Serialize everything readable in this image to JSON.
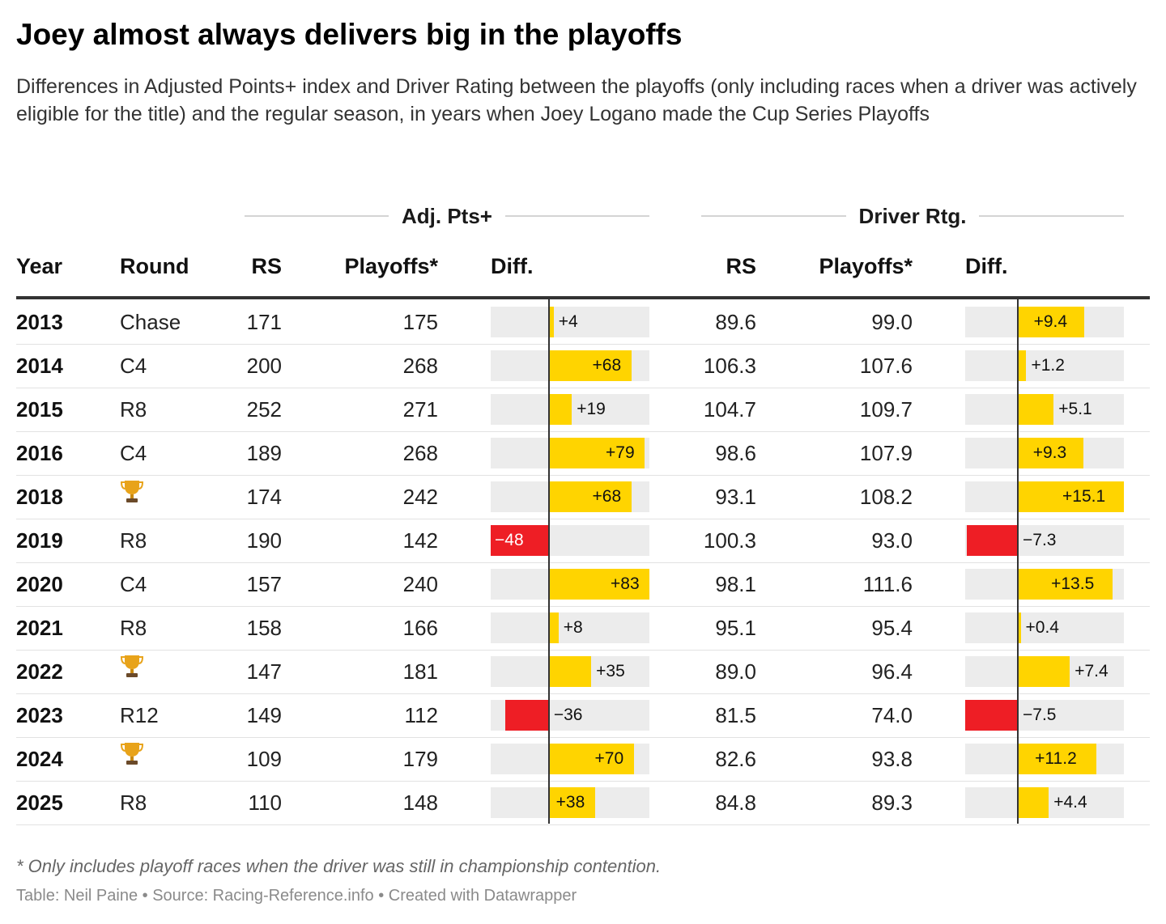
{
  "title": "Joey almost always delivers big in the playoffs",
  "subtitle": "Differences in Adjusted Points+ index and Driver Rating between the playoffs (only including races when a driver was actively eligible for the title) and the regular season, in years when Joey Logano made the Cup Series Playoffs",
  "groups": {
    "adj": "Adj. Pts+",
    "rtg": "Driver Rtg."
  },
  "columns": {
    "year": "Year",
    "round": "Round",
    "adj_rs": "RS",
    "adj_po": "Playoffs*",
    "adj_diff": "Diff.",
    "rtg_rs": "RS",
    "rtg_po": "Playoffs*",
    "rtg_diff": "Diff."
  },
  "colors": {
    "positive": "#ffd400",
    "negative": "#ee1e25",
    "bar_background": "#ececec"
  },
  "chart_data": {
    "type": "table",
    "title": "Joey almost always delivers big in the playoffs",
    "adj_diff_domain": [
      -48,
      83
    ],
    "rtg_diff_domain": [
      -7.5,
      15.1
    ],
    "rows": [
      {
        "year": "2013",
        "round": "Chase",
        "trophy": false,
        "adj_rs": "171",
        "adj_po": "175",
        "adj_diff": 4,
        "adj_diff_label": "+4",
        "rtg_rs": "89.6",
        "rtg_po": "99.0",
        "rtg_diff": 9.4,
        "rtg_diff_label": "+9.4"
      },
      {
        "year": "2014",
        "round": "C4",
        "trophy": false,
        "adj_rs": "200",
        "adj_po": "268",
        "adj_diff": 68,
        "adj_diff_label": "+68",
        "rtg_rs": "106.3",
        "rtg_po": "107.6",
        "rtg_diff": 1.2,
        "rtg_diff_label": "+1.2"
      },
      {
        "year": "2015",
        "round": "R8",
        "trophy": false,
        "adj_rs": "252",
        "adj_po": "271",
        "adj_diff": 19,
        "adj_diff_label": "+19",
        "rtg_rs": "104.7",
        "rtg_po": "109.7",
        "rtg_diff": 5.1,
        "rtg_diff_label": "+5.1"
      },
      {
        "year": "2016",
        "round": "C4",
        "trophy": false,
        "adj_rs": "189",
        "adj_po": "268",
        "adj_diff": 79,
        "adj_diff_label": "+79",
        "rtg_rs": "98.6",
        "rtg_po": "107.9",
        "rtg_diff": 9.3,
        "rtg_diff_label": "+9.3"
      },
      {
        "year": "2018",
        "round": "",
        "trophy": true,
        "adj_rs": "174",
        "adj_po": "242",
        "adj_diff": 68,
        "adj_diff_label": "+68",
        "rtg_rs": "93.1",
        "rtg_po": "108.2",
        "rtg_diff": 15.1,
        "rtg_diff_label": "+15.1"
      },
      {
        "year": "2019",
        "round": "R8",
        "trophy": false,
        "adj_rs": "190",
        "adj_po": "142",
        "adj_diff": -48,
        "adj_diff_label": "−48",
        "rtg_rs": "100.3",
        "rtg_po": "93.0",
        "rtg_diff": -7.3,
        "rtg_diff_label": "−7.3"
      },
      {
        "year": "2020",
        "round": "C4",
        "trophy": false,
        "adj_rs": "157",
        "adj_po": "240",
        "adj_diff": 83,
        "adj_diff_label": "+83",
        "rtg_rs": "98.1",
        "rtg_po": "111.6",
        "rtg_diff": 13.5,
        "rtg_diff_label": "+13.5"
      },
      {
        "year": "2021",
        "round": "R8",
        "trophy": false,
        "adj_rs": "158",
        "adj_po": "166",
        "adj_diff": 8,
        "adj_diff_label": "+8",
        "rtg_rs": "95.1",
        "rtg_po": "95.4",
        "rtg_diff": 0.4,
        "rtg_diff_label": "+0.4"
      },
      {
        "year": "2022",
        "round": "",
        "trophy": true,
        "adj_rs": "147",
        "adj_po": "181",
        "adj_diff": 35,
        "adj_diff_label": "+35",
        "rtg_rs": "89.0",
        "rtg_po": "96.4",
        "rtg_diff": 7.4,
        "rtg_diff_label": "+7.4"
      },
      {
        "year": "2023",
        "round": "R12",
        "trophy": false,
        "adj_rs": "149",
        "adj_po": "112",
        "adj_diff": -36,
        "adj_diff_label": "−36",
        "rtg_rs": "81.5",
        "rtg_po": "74.0",
        "rtg_diff": -7.5,
        "rtg_diff_label": "−7.5"
      },
      {
        "year": "2024",
        "round": "",
        "trophy": true,
        "adj_rs": "109",
        "adj_po": "179",
        "adj_diff": 70,
        "adj_diff_label": "+70",
        "rtg_rs": "82.6",
        "rtg_po": "93.8",
        "rtg_diff": 11.2,
        "rtg_diff_label": "+11.2"
      },
      {
        "year": "2025",
        "round": "R8",
        "trophy": false,
        "adj_rs": "110",
        "adj_po": "148",
        "adj_diff": 38,
        "adj_diff_label": "+38",
        "rtg_rs": "84.8",
        "rtg_po": "89.3",
        "rtg_diff": 4.4,
        "rtg_diff_label": "+4.4"
      }
    ]
  },
  "footnote": "* Only includes playoff races when the driver was still in championship contention.",
  "source": "Table: Neil Paine • Source: Racing-Reference.info • Created with Datawrapper"
}
